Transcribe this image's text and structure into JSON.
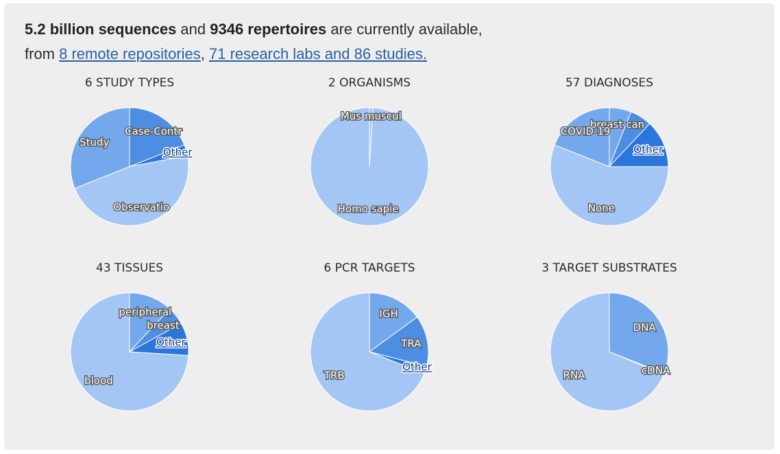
{
  "summary": {
    "sequences": "5.2 billion sequences",
    "and": " and ",
    "repertoires": "9346 repertoires",
    "available": " are currently available,",
    "from": "from ",
    "repositories_link": "8 remote repositories",
    "comma": ", ",
    "labs_link": "71 research labs and 86 studies."
  },
  "colors": {
    "light": "#a3c6f4",
    "medium": "#73a9ec",
    "dark": "#4d8ee3",
    "darkest": "#2a76dc"
  },
  "chart_data": [
    {
      "type": "pie",
      "title": "6 STUDY TYPES",
      "slices": [
        {
          "label": "Case-Contr",
          "value": 19,
          "color": "#4d8ee3"
        },
        {
          "label": "Other",
          "value": 3,
          "color": "#2a76dc",
          "link": true
        },
        {
          "label": "Observatio",
          "value": 47,
          "color": "#a3c6f4"
        },
        {
          "label": "Study",
          "value": 31,
          "color": "#73a9ec"
        }
      ]
    },
    {
      "type": "pie",
      "title": "2 ORGANISMS",
      "slices": [
        {
          "label": "Mus muscul",
          "value": 1,
          "color": "#a3c6f4"
        },
        {
          "label": "Homo sapie",
          "value": 99,
          "color": "#a3c6f4"
        }
      ]
    },
    {
      "type": "pie",
      "title": "57 DIAGNOSES",
      "slices": [
        {
          "label": "breast can",
          "value": 6,
          "color": "#73a9ec"
        },
        {
          "label": "",
          "value": 6,
          "color": "#4d8ee3"
        },
        {
          "label": "Other",
          "value": 13,
          "color": "#2a76dc",
          "link": true
        },
        {
          "label": "None",
          "value": 56,
          "color": "#a3c6f4"
        },
        {
          "label": "COVID-19",
          "value": 19,
          "color": "#73a9ec"
        }
      ]
    },
    {
      "type": "pie",
      "title": "43 TISSUES",
      "slices": [
        {
          "label": "peripheral",
          "value": 12,
          "color": "#73a9ec"
        },
        {
          "label": "breast",
          "value": 5,
          "color": "#4d8ee3"
        },
        {
          "label": "Other",
          "value": 9,
          "color": "#2a76dc",
          "link": true
        },
        {
          "label": "blood",
          "value": 74,
          "color": "#a3c6f4"
        }
      ]
    },
    {
      "type": "pie",
      "title": "6 PCR TARGETS",
      "slices": [
        {
          "label": "IGH",
          "value": 15,
          "color": "#73a9ec"
        },
        {
          "label": "TRA",
          "value": 14,
          "color": "#4d8ee3"
        },
        {
          "label": "Other",
          "value": 2,
          "color": "#2a76dc",
          "link": true
        },
        {
          "label": "TRB",
          "value": 69,
          "color": "#a3c6f4"
        }
      ]
    },
    {
      "type": "pie",
      "title": "3 TARGET SUBSTRATES",
      "slices": [
        {
          "label": "DNA",
          "value": 31,
          "color": "#73a9ec"
        },
        {
          "label": "cDNA",
          "value": 0.3,
          "color": "#4d8ee3"
        },
        {
          "label": "RNA",
          "value": 68.7,
          "color": "#a3c6f4"
        }
      ]
    }
  ]
}
